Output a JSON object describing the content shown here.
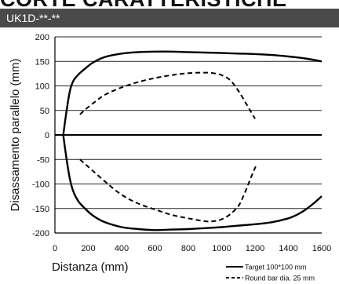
{
  "page_heading": "CORTE CARATTERISTICHE",
  "panel_title": "UK1D-**-**",
  "colors": {
    "title_bar": "#4a4a4a",
    "line": "#000000"
  },
  "chart_data": {
    "type": "line",
    "xlabel": "Distanza (mm)",
    "ylabel": "Disassamento parallelo (mm)",
    "xlim": [
      0,
      1600
    ],
    "ylim": [
      -200,
      200
    ],
    "xticks": [
      0,
      200,
      400,
      600,
      800,
      1000,
      1200,
      1400,
      1600
    ],
    "yticks": [
      200,
      150,
      100,
      50,
      0,
      -50,
      -100,
      -150,
      -200
    ],
    "grid": "horizontal",
    "legend_position": "bottom-right",
    "series": [
      {
        "name": "Target 100*100 mm",
        "style": "solid",
        "segments": [
          {
            "x": [
              50,
              70,
              90,
              110,
              140,
              180,
              230,
              300,
              400,
              500,
              600,
              700,
              800,
              900,
              1000,
              1100,
              1200,
              1300,
              1400,
              1500,
              1600
            ],
            "y": [
              0,
              50,
              90,
              110,
              123,
              135,
              148,
              159,
              166,
              169,
              170,
              170,
              169,
              168,
              167,
              166,
              165,
              163,
              160,
              156,
              150
            ]
          },
          {
            "x": [
              50,
              70,
              90,
              110,
              140,
              180,
              230,
              300,
              400,
              500,
              600,
              700,
              800,
              900,
              1000,
              1100,
              1200,
              1300,
              1400,
              1450,
              1500,
              1550,
              1600
            ],
            "y": [
              0,
              -50,
              -90,
              -115,
              -135,
              -150,
              -165,
              -178,
              -188,
              -192,
              -194,
              -193,
              -192,
              -190,
              -188,
              -185,
              -182,
              -178,
              -170,
              -163,
              -153,
              -140,
              -125
            ]
          }
        ]
      },
      {
        "name": "Round bar dia. 25 mm",
        "style": "dashed",
        "segments": [
          {
            "x": [
              150,
              200,
              250,
              300,
              400,
              500,
              600,
              700,
              800,
              900,
              950,
              1000,
              1050,
              1100,
              1150,
              1200
            ],
            "y": [
              42,
              57,
              70,
              82,
              97,
              108,
              116,
              122,
              126,
              127,
              126,
              122,
              112,
              90,
              62,
              33
            ]
          },
          {
            "x": [
              150,
              200,
              300,
              400,
              500,
              600,
              700,
              800,
              900,
              950,
              1000,
              1050,
              1100,
              1130,
              1160,
              1190,
              1210
            ],
            "y": [
              -50,
              -65,
              -95,
              -122,
              -140,
              -152,
              -163,
              -170,
              -176,
              -176,
              -172,
              -162,
              -145,
              -125,
              -100,
              -75,
              -60
            ]
          }
        ]
      }
    ]
  }
}
